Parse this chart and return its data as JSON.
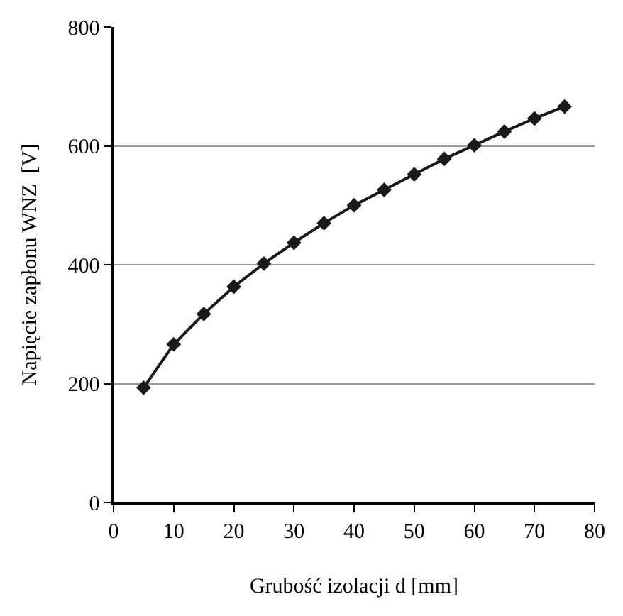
{
  "chart_data": {
    "type": "line",
    "xlabel": "Grubość izolacji d [mm]",
    "ylabel": "Napięcie zapłonu WNZ  [V]",
    "x": [
      5,
      10,
      15,
      20,
      25,
      30,
      35,
      40,
      45,
      50,
      55,
      60,
      65,
      70,
      75
    ],
    "series": [
      {
        "color": "#1a1a1a",
        "values": [
          193,
          266,
          317,
          363,
          402,
          437,
          470,
          500,
          526,
          552,
          578,
          601,
          624,
          646,
          666
        ]
      }
    ],
    "xlim": [
      0,
      80
    ],
    "xticks": [
      0,
      10,
      20,
      30,
      40,
      50,
      60,
      70,
      80
    ],
    "ylim": [
      0,
      800
    ],
    "yticks": [
      0,
      200,
      400,
      600,
      800
    ],
    "grid": "y",
    "marker": "diamond",
    "line_style": "solid"
  }
}
